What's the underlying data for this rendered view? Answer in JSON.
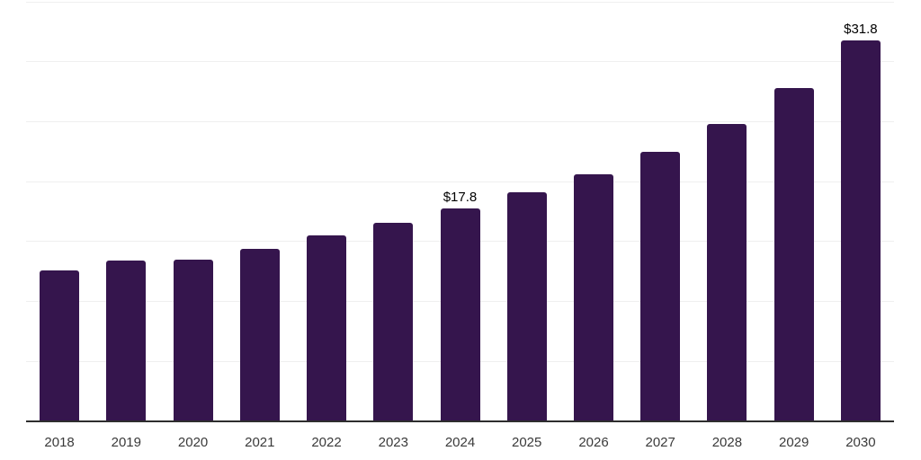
{
  "chart_data": {
    "type": "bar",
    "categories": [
      "2018",
      "2019",
      "2020",
      "2021",
      "2022",
      "2023",
      "2024",
      "2025",
      "2026",
      "2027",
      "2028",
      "2029",
      "2030"
    ],
    "values": [
      12.6,
      13.4,
      13.5,
      14.4,
      15.5,
      16.6,
      17.8,
      19.1,
      20.6,
      22.5,
      24.8,
      27.8,
      31.8
    ],
    "bar_labels": {
      "2024": "$17.8",
      "2030": "$31.8"
    },
    "title": "",
    "xlabel": "",
    "ylabel": "",
    "ylim": [
      0,
      35
    ],
    "gridline_step": 5,
    "grid": "horizontal",
    "legend": "none",
    "bar_color": "#35154D",
    "gridline_color": "#efefef",
    "axis_line_color": "#2e2e2e",
    "value_label_color": "#000000",
    "tick_label_color": "#3a3a3a"
  }
}
